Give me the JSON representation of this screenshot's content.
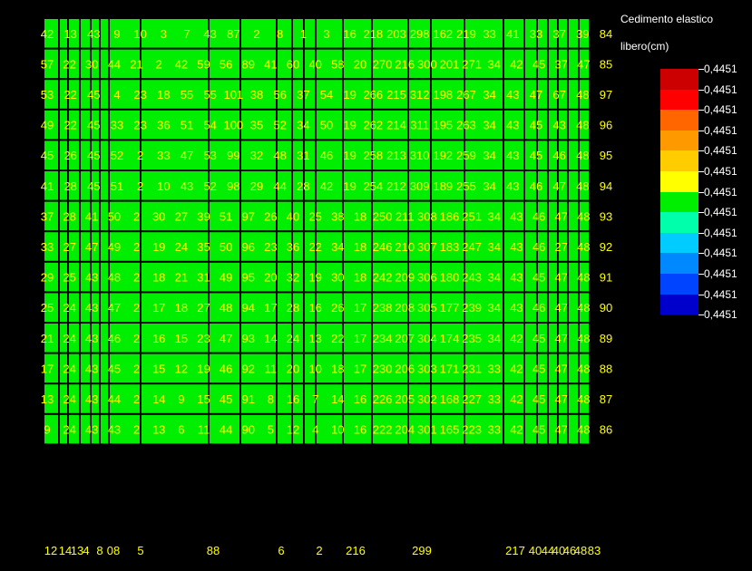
{
  "chart_data": {
    "type": "heatmap",
    "colorbar": {
      "title_line1": "Cedimento elastico",
      "title_line2": "libero(cm)",
      "ticks": [
        "0,4451",
        "0,4451",
        "0,4451",
        "0,4451",
        "0,4451",
        "0,4451",
        "0,4451",
        "0,4451",
        "0,4451",
        "0,4451",
        "0,4451",
        "0,4451",
        "0,4451"
      ],
      "colors": [
        "#cc0000",
        "#ff0000",
        "#ff6600",
        "#ff9900",
        "#ffcc00",
        "#ffff00",
        "#00ee00",
        "#00ffaa",
        "#00ccff",
        "#0088ff",
        "#0044ff",
        "#0000cc"
      ]
    },
    "cell_color": "#00ee00",
    "label_color": "#ffff00",
    "rows": [
      {
        "labels": [
          "42",
          "13",
          "43",
          "9",
          "10",
          "3",
          "7",
          "43",
          "87",
          "2",
          "8",
          "1",
          "3",
          "16",
          "218",
          "203",
          "298",
          "162",
          "219",
          "33",
          "41",
          "33",
          "37",
          "39",
          "84"
        ]
      },
      {
        "labels": [
          "57",
          "22",
          "30",
          "44",
          "21",
          "2",
          "42",
          "59",
          "56",
          "89",
          "41",
          "60",
          "40",
          "58",
          "20",
          "270",
          "216",
          "300",
          "201",
          "271",
          "34",
          "42",
          "45",
          "37",
          "47",
          "85"
        ]
      },
      {
        "labels": [
          "53",
          "22",
          "45",
          "4",
          "23",
          "18",
          "55",
          "55",
          "101",
          "38",
          "56",
          "37",
          "54",
          "19",
          "266",
          "215",
          "312",
          "198",
          "267",
          "34",
          "43",
          "47",
          "67",
          "48",
          "97"
        ]
      },
      {
        "labels": [
          "49",
          "22",
          "45",
          "33",
          "23",
          "36",
          "51",
          "54",
          "100",
          "35",
          "52",
          "34",
          "50",
          "19",
          "262",
          "214",
          "311",
          "195",
          "263",
          "34",
          "43",
          "45",
          "43",
          "48",
          "96"
        ]
      },
      {
        "labels": [
          "45",
          "26",
          "45",
          "52",
          "2",
          "33",
          "47",
          "53",
          "99",
          "32",
          "48",
          "31",
          "46",
          "19",
          "258",
          "213",
          "310",
          "192",
          "259",
          "34",
          "43",
          "45",
          "46",
          "48",
          "95"
        ]
      },
      {
        "labels": [
          "41",
          "28",
          "45",
          "51",
          "2",
          "10",
          "43",
          "52",
          "98",
          "29",
          "44",
          "28",
          "42",
          "19",
          "254",
          "212",
          "309",
          "189",
          "255",
          "34",
          "43",
          "46",
          "47",
          "48",
          "94"
        ]
      },
      {
        "labels": [
          "37",
          "28",
          "41",
          "50",
          "2",
          "30",
          "27",
          "39",
          "51",
          "97",
          "26",
          "40",
          "25",
          "38",
          "18",
          "250",
          "211",
          "308",
          "186",
          "251",
          "34",
          "43",
          "46",
          "47",
          "48",
          "93"
        ]
      },
      {
        "labels": [
          "33",
          "27",
          "47",
          "49",
          "2",
          "19",
          "24",
          "35",
          "50",
          "96",
          "23",
          "36",
          "22",
          "34",
          "18",
          "246",
          "210",
          "307",
          "183",
          "247",
          "34",
          "43",
          "46",
          "27",
          "48",
          "92"
        ]
      },
      {
        "labels": [
          "29",
          "25",
          "43",
          "48",
          "2",
          "18",
          "21",
          "31",
          "49",
          "95",
          "20",
          "32",
          "19",
          "30",
          "18",
          "242",
          "209",
          "306",
          "180",
          "243",
          "34",
          "43",
          "45",
          "47",
          "48",
          "91"
        ]
      },
      {
        "labels": [
          "25",
          "24",
          "43",
          "47",
          "2",
          "17",
          "18",
          "27",
          "48",
          "94",
          "17",
          "28",
          "16",
          "26",
          "17",
          "238",
          "208",
          "305",
          "177",
          "239",
          "34",
          "43",
          "46",
          "47",
          "48",
          "90"
        ]
      },
      {
        "labels": [
          "21",
          "24",
          "43",
          "46",
          "2",
          "16",
          "15",
          "23",
          "47",
          "93",
          "14",
          "24",
          "13",
          "22",
          "17",
          "234",
          "207",
          "304",
          "174",
          "235",
          "34",
          "42",
          "45",
          "47",
          "48",
          "89"
        ]
      },
      {
        "labels": [
          "17",
          "24",
          "43",
          "45",
          "2",
          "15",
          "12",
          "19",
          "46",
          "92",
          "11",
          "20",
          "10",
          "18",
          "17",
          "230",
          "206",
          "303",
          "171",
          "231",
          "33",
          "42",
          "45",
          "47",
          "48",
          "88"
        ]
      },
      {
        "labels": [
          "13",
          "24",
          "43",
          "44",
          "2",
          "14",
          "9",
          "15",
          "45",
          "91",
          "8",
          "16",
          "7",
          "14",
          "16",
          "226",
          "205",
          "302",
          "168",
          "227",
          "33",
          "42",
          "45",
          "47",
          "48",
          "87"
        ]
      },
      {
        "labels": [
          "9",
          "24",
          "43",
          "43",
          "2",
          "13",
          "6",
          "11",
          "44",
          "90",
          "5",
          "12",
          "4",
          "10",
          "16",
          "222",
          "204",
          "301",
          "165",
          "223",
          "33",
          "42",
          "45",
          "47",
          "48",
          "86"
        ]
      }
    ],
    "bottom_labels": [
      "12",
      "14",
      "13",
      "4",
      "8",
      "08",
      "5",
      "88",
      "6",
      "2",
      "216",
      "299",
      "217",
      "40",
      "44",
      "40",
      "46",
      "48",
      "83"
    ]
  }
}
